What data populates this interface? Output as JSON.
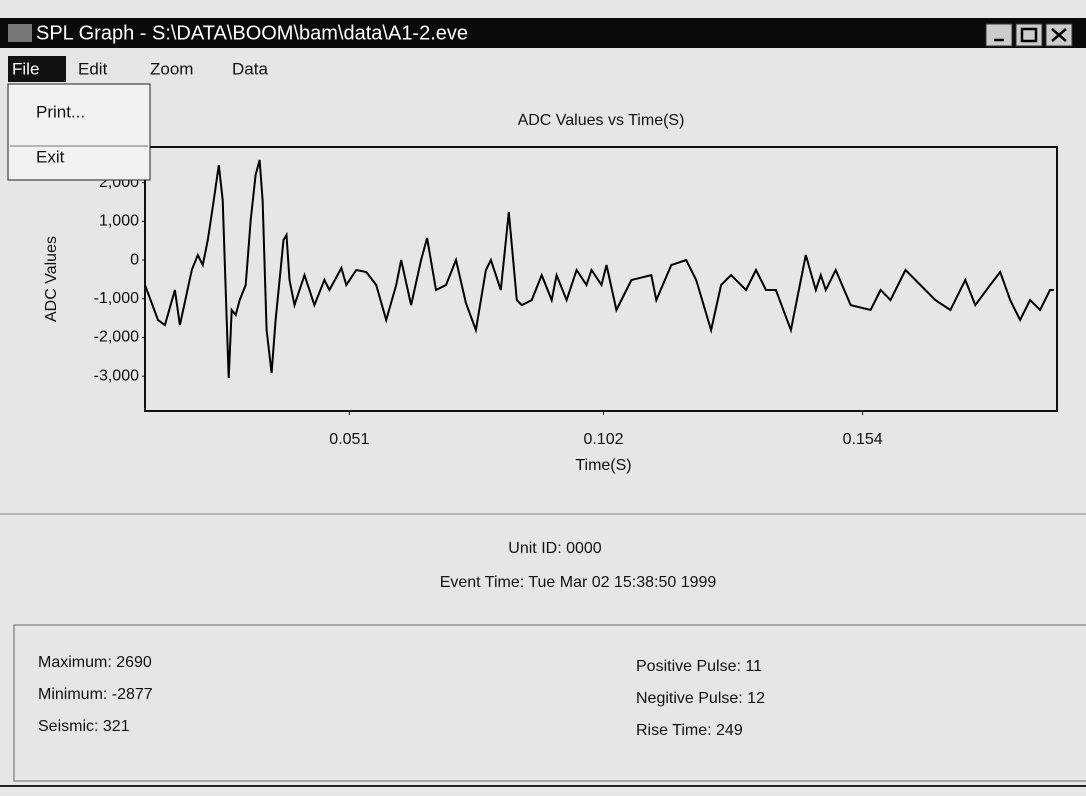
{
  "window": {
    "title": "SPL Graph - S:\\DATA\\BOOM\\bam\\data\\A1-2.eve"
  },
  "menu": [
    "File",
    "Edit",
    "Zoom",
    "Data"
  ],
  "file_menu": [
    "Print...",
    "Exit"
  ],
  "chart_data": {
    "type": "line",
    "title": "ADC Values vs Time(S)",
    "x_label": "Time(S)",
    "y_label": "ADC Values",
    "x": [
      0.01,
      0.0126,
      0.014,
      0.016,
      0.017,
      0.0194,
      0.0206,
      0.0216,
      0.0226,
      0.0238,
      0.0248,
      0.0256,
      0.0264,
      0.0268,
      0.0274,
      0.0282,
      0.029,
      0.0302,
      0.0312,
      0.0322,
      0.033,
      0.0336,
      0.0344,
      0.0354,
      0.0362,
      0.037,
      0.0378,
      0.0384,
      0.039,
      0.04,
      0.042,
      0.044,
      0.046,
      0.047,
      0.0494,
      0.0504,
      0.0524,
      0.0544,
      0.0564,
      0.0584,
      0.0604,
      0.0614,
      0.0634,
      0.0654,
      0.0666,
      0.0684,
      0.0704,
      0.0724,
      0.0744,
      0.0764,
      0.0784,
      0.0794,
      0.0814,
      0.083,
      0.0846,
      0.0856,
      0.0876,
      0.0896,
      0.0916,
      0.0926,
      0.0946,
      0.0966,
      0.0986,
      0.0996,
      0.1016,
      0.1026,
      0.1046,
      0.1076,
      0.1116,
      0.1126,
      0.1156,
      0.1186,
      0.1206,
      0.1236,
      0.1256,
      0.1276,
      0.1306,
      0.1326,
      0.1346,
      0.1366,
      0.1396,
      0.1426,
      0.1446,
      0.1456,
      0.1466,
      0.1486,
      0.1516,
      0.1556,
      0.1576,
      0.1596,
      0.1626,
      0.1656,
      0.1686,
      0.1716,
      0.1746,
      0.1766,
      0.1796,
      0.1816,
      0.1836,
      0.1856,
      0.1876,
      0.1896,
      0.1916,
      0.1924
    ],
    "series": [
      {
        "color": "#000000",
        "values": [
          -646,
          -1550,
          -1680,
          -775,
          -1680,
          -258,
          129,
          -129,
          517,
          1550,
          2455,
          1550,
          -1550,
          -3049,
          -1292,
          -1421,
          -1034,
          -646,
          1034,
          2196,
          2584,
          1550,
          -1809,
          -2920,
          -1550,
          -517,
          517,
          646,
          -517,
          -1163,
          -388,
          -1163,
          -517,
          -775,
          -207,
          -646,
          -258,
          -310,
          -646,
          -1550,
          -646,
          0,
          -1163,
          0,
          568,
          -775,
          -646,
          0,
          -1111,
          -1809,
          -258,
          0,
          -775,
          1240,
          -1034,
          -1163,
          -1034,
          -388,
          -1034,
          -388,
          -1034,
          -258,
          -646,
          -258,
          -646,
          -129,
          -1292,
          -517,
          -388,
          -1034,
          -129,
          0,
          -517,
          -1809,
          -646,
          -388,
          -775,
          -258,
          -775,
          -775,
          -1809,
          129,
          -775,
          -388,
          -775,
          -258,
          -1163,
          -1292,
          -775,
          -1034,
          -258,
          -646,
          -1034,
          -1292,
          -517,
          -1163,
          -646,
          -310,
          -1034,
          -1550,
          -1034,
          -1292,
          -775,
          -775
        ]
      }
    ],
    "xlim": [
      0.01,
      0.193
    ],
    "xticks": [
      0.051,
      0.102,
      0.154
    ],
    "ylim": [
      -3900,
      2920
    ],
    "yticks": [
      {
        "value": 2000,
        "label": "2,000"
      },
      {
        "value": 1000,
        "label": "1,000"
      },
      0,
      {
        "value": -1000,
        "label": "-1,000"
      },
      {
        "value": -2000,
        "label": "-2,000"
      },
      {
        "value": -3000,
        "label": "-3,000"
      }
    ]
  },
  "info": {
    "unit_id": "Unit ID: 0000",
    "event_time": "Event Time: Tue Mar 02 15:38:50 1999"
  },
  "stats": {
    "left": [
      "Maximum: 2690",
      "Minimum: -2877",
      "Seismic: 321"
    ],
    "right": [
      "Positive Pulse: 11",
      "Negitive Pulse: 12",
      "Rise Time: 249"
    ]
  }
}
